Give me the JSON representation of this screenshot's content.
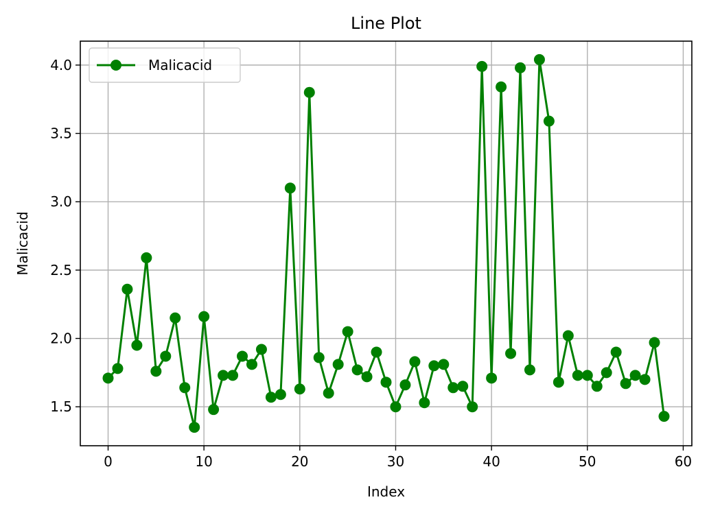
{
  "chart_data": {
    "type": "line",
    "title": "Line Plot",
    "xlabel": "Index",
    "ylabel": "Malicacid",
    "xlim": [
      -2.9,
      60.9
    ],
    "ylim": [
      1.215,
      4.175
    ],
    "xticks": [
      0,
      10,
      20,
      30,
      40,
      50,
      60
    ],
    "yticks": [
      1.5,
      2.0,
      2.5,
      3.0,
      3.5,
      4.0
    ],
    "xtick_labels": [
      "0",
      "10",
      "20",
      "30",
      "40",
      "50",
      "60"
    ],
    "ytick_labels": [
      "1.5",
      "2.0",
      "2.5",
      "3.0",
      "3.5",
      "4.0"
    ],
    "grid": true,
    "legend_position": "top-left",
    "series": [
      {
        "name": "Malicacid",
        "color": "#008000",
        "marker": "circle",
        "x": [
          0,
          1,
          2,
          3,
          4,
          5,
          6,
          7,
          8,
          9,
          10,
          11,
          12,
          13,
          14,
          15,
          16,
          17,
          18,
          19,
          20,
          21,
          22,
          23,
          24,
          25,
          26,
          27,
          28,
          29,
          30,
          31,
          32,
          33,
          34,
          35,
          36,
          37,
          38,
          39,
          40,
          41,
          42,
          43,
          44,
          45,
          46,
          47,
          48,
          49,
          50,
          51,
          52,
          53,
          54,
          55,
          56,
          57,
          58
        ],
        "values": [
          1.71,
          1.78,
          2.36,
          1.95,
          2.59,
          1.76,
          1.87,
          2.15,
          1.64,
          1.35,
          2.16,
          1.48,
          1.73,
          1.73,
          1.87,
          1.81,
          1.92,
          1.57,
          1.59,
          3.1,
          1.63,
          3.8,
          1.86,
          1.6,
          1.81,
          2.05,
          1.77,
          1.72,
          1.9,
          1.68,
          1.5,
          1.66,
          1.83,
          1.53,
          1.8,
          1.81,
          1.64,
          1.65,
          1.5,
          3.99,
          1.71,
          3.84,
          1.89,
          3.98,
          1.77,
          4.04,
          3.59,
          1.68,
          2.02,
          1.73,
          1.73,
          1.65,
          1.75,
          1.9,
          1.67,
          1.73,
          1.7,
          1.97,
          1.43
        ]
      }
    ]
  }
}
